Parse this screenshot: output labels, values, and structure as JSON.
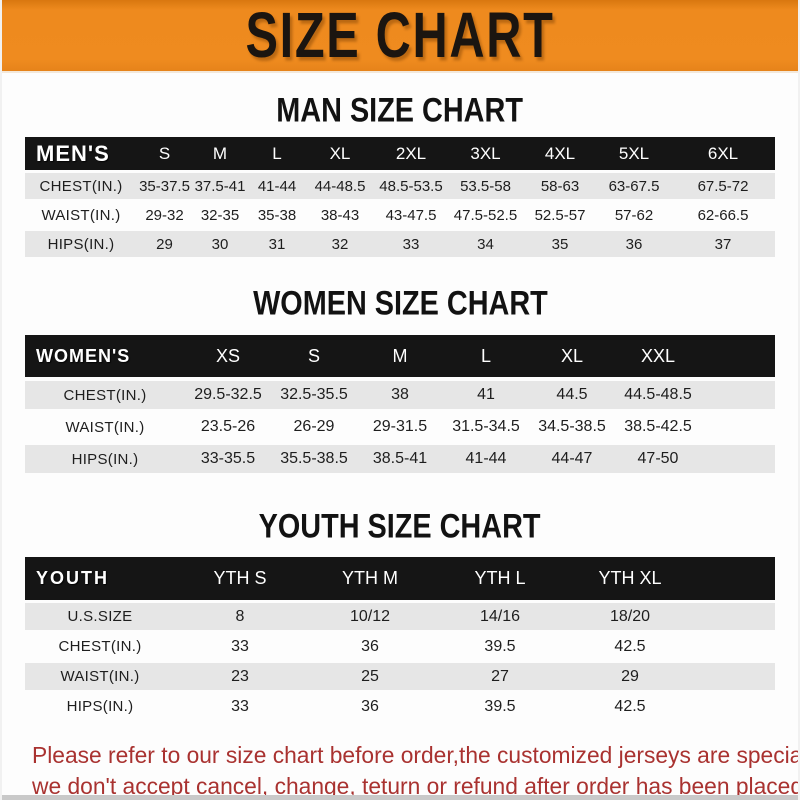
{
  "banner": {
    "title": "SIZE CHART"
  },
  "men": {
    "title": "MAN SIZE CHART",
    "corner_label": "MEN'S",
    "columns": [
      "S",
      "M",
      "L",
      "XL",
      "2XL",
      "3XL",
      "4XL",
      "5XL",
      "6XL"
    ],
    "rows": [
      {
        "label": "CHEST(IN.)",
        "values": [
          "35-37.5",
          "37.5-41",
          "41-44",
          "44-48.5",
          "48.5-53.5",
          "53.5-58",
          "58-63",
          "63-67.5",
          "67.5-72"
        ]
      },
      {
        "label": "WAIST(IN.)",
        "values": [
          "29-32",
          "32-35",
          "35-38",
          "38-43",
          "43-47.5",
          "47.5-52.5",
          "52.5-57",
          "57-62",
          "62-66.5"
        ]
      },
      {
        "label": "HIPS(IN.)",
        "values": [
          "29",
          "30",
          "31",
          "32",
          "33",
          "34",
          "35",
          "36",
          "37"
        ]
      }
    ]
  },
  "women": {
    "title": "WOMEN SIZE CHART",
    "corner_label": "WOMEN'S",
    "columns": [
      "XS",
      "S",
      "M",
      "L",
      "XL",
      "XXL"
    ],
    "rows": [
      {
        "label": "CHEST(IN.)",
        "values": [
          "29.5-32.5",
          "32.5-35.5",
          "38",
          "41",
          "44.5",
          "44.5-48.5"
        ]
      },
      {
        "label": "WAIST(IN.)",
        "values": [
          "23.5-26",
          "26-29",
          "29-31.5",
          "31.5-34.5",
          "34.5-38.5",
          "38.5-42.5"
        ]
      },
      {
        "label": "HIPS(IN.)",
        "values": [
          "33-35.5",
          "35.5-38.5",
          "38.5-41",
          "41-44",
          "44-47",
          "47-50"
        ]
      }
    ]
  },
  "youth": {
    "title": "YOUTH SIZE CHART",
    "corner_label": "YOUTH",
    "columns": [
      "YTH S",
      "YTH M",
      "YTH L",
      "YTH XL"
    ],
    "rows": [
      {
        "label": "U.S.SIZE",
        "values": [
          "8",
          "10/12",
          "14/16",
          "18/20"
        ]
      },
      {
        "label": "CHEST(IN.)",
        "values": [
          "33",
          "36",
          "39.5",
          "42.5"
        ]
      },
      {
        "label": "WAIST(IN.)",
        "values": [
          "23",
          "25",
          "27",
          "29"
        ]
      },
      {
        "label": "HIPS(IN.)",
        "values": [
          "33",
          "36",
          "39.5",
          "42.5"
        ]
      }
    ]
  },
  "footer": {
    "line1": "Please refer to our size chart before order,the customized jerseys are special products,",
    "line2": "we don't accept cancel, change, teturn or refund after order has been placed!"
  },
  "colors": {
    "banner_orange": "#ee8a1e",
    "header_bar_black": "#151515",
    "stripe_gray": "#e6e6e6",
    "notice_red": "#a93230",
    "title_black": "#121212"
  }
}
